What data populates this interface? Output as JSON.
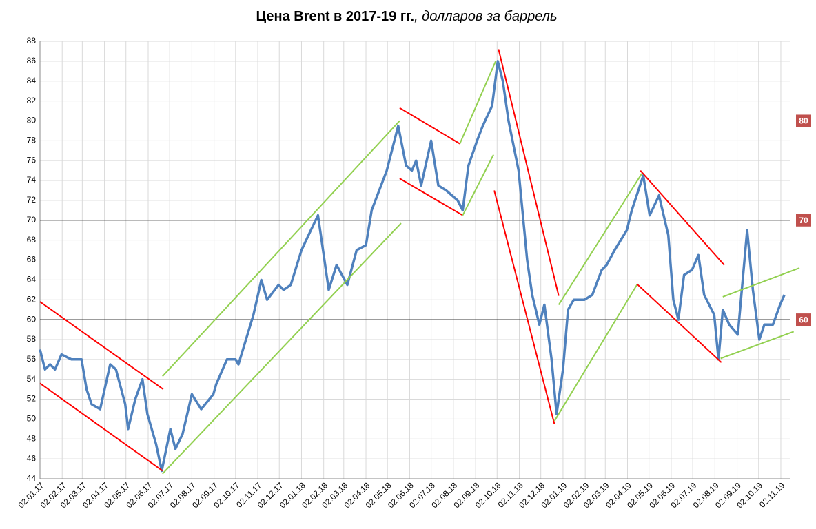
{
  "chart_data": {
    "type": "line",
    "title": "Цена Brent в 2017-19 гг.",
    "subtitle": ", долларов за баррель",
    "xlim": [
      "02.01.17",
      "28.11.19"
    ],
    "xticks": [
      "02.01.17",
      "02.02.17",
      "02.03.17",
      "02.04.17",
      "02.05.17",
      "02.06.17",
      "02.07.17",
      "02.08.17",
      "02.09.17",
      "02.10.17",
      "02.11.17",
      "02.12.17",
      "02.01.18",
      "02.02.18",
      "02.03.18",
      "02.04.18",
      "02.05.18",
      "02.06.18",
      "02.07.18",
      "02.08.18",
      "02.09.18",
      "02.10.18",
      "02.11.18",
      "02.12.18",
      "02.01.19",
      "02.02.19",
      "02.03.19",
      "02.04.19",
      "02.05.19",
      "02.06.19",
      "02.07.19",
      "02.08.19",
      "02.09.19",
      "02.10.19",
      "02.11.19"
    ],
    "ylim": [
      44,
      88
    ],
    "yticks": [
      44,
      46,
      48,
      50,
      52,
      54,
      56,
      58,
      60,
      62,
      64,
      66,
      68,
      70,
      72,
      74,
      76,
      78,
      80,
      82,
      84,
      86,
      88
    ],
    "grid": true,
    "hlines": [
      80,
      70,
      60
    ],
    "hline_color": "#c0504d",
    "x": [
      "02.01.17",
      "09.01.17",
      "16.01.17",
      "23.01.17",
      "01.02.17",
      "15.02.17",
      "01.03.17",
      "08.03.17",
      "15.03.17",
      "27.03.17",
      "10.04.17",
      "18.04.17",
      "01.05.17",
      "05.05.17",
      "15.05.17",
      "25.05.17",
      "01.06.17",
      "13.06.17",
      "21.06.17",
      "03.07.17",
      "10.07.17",
      "20.07.17",
      "02.08.17",
      "15.08.17",
      "01.09.17",
      "05.09.17",
      "20.09.17",
      "02.10.17",
      "06.10.17",
      "27.10.17",
      "07.11.17",
      "15.11.17",
      "01.12.17",
      "08.12.17",
      "18.12.17",
      "02.01.18",
      "15.01.18",
      "25.01.18",
      "09.02.18",
      "20.02.18",
      "07.03.18",
      "20.03.18",
      "02.04.18",
      "10.04.18",
      "01.05.18",
      "17.05.18",
      "28.05.18",
      "05.06.18",
      "11.06.18",
      "18.06.18",
      "02.07.18",
      "12.07.18",
      "23.07.18",
      "08.08.18",
      "15.08.18",
      "23.08.18",
      "04.09.18",
      "12.09.18",
      "25.09.18",
      "03.10.18",
      "10.10.18",
      "18.10.18",
      "01.11.18",
      "13.11.18",
      "20.11.18",
      "30.11.18",
      "07.12.18",
      "17.12.18",
      "24.12.18",
      "02.01.19",
      "09.01.19",
      "17.01.19",
      "01.02.19",
      "12.02.19",
      "25.02.19",
      "04.03.19",
      "15.03.19",
      "01.04.19",
      "08.04.19",
      "24.04.19",
      "03.05.19",
      "16.05.19",
      "29.05.19",
      "05.06.19",
      "12.06.19",
      "20.06.19",
      "01.07.19",
      "10.07.19",
      "18.07.19",
      "01.08.19",
      "07.08.19",
      "13.08.19",
      "22.08.19",
      "03.09.19",
      "16.09.19",
      "24.09.19",
      "03.10.19",
      "10.10.19",
      "22.10.19",
      "01.11.19",
      "07.11.19"
    ],
    "series": [
      {
        "color": "#4f81bd",
        "values": [
          57,
          55,
          55.5,
          55,
          56.5,
          56,
          56,
          53,
          51.5,
          51,
          55.5,
          55,
          51.5,
          49,
          52,
          54,
          50.5,
          47.5,
          44.8,
          49,
          47,
          48.5,
          52.5,
          51,
          52.5,
          53.5,
          56,
          56,
          55.5,
          60.5,
          64,
          62,
          63.5,
          63,
          63.5,
          67,
          69,
          70.5,
          63,
          65.5,
          63.5,
          67,
          67.5,
          71,
          75,
          79.5,
          75.5,
          75,
          76,
          73.5,
          78,
          73.5,
          73,
          72,
          71,
          75.5,
          78,
          79.5,
          81.5,
          86,
          84,
          80,
          75,
          66,
          62.5,
          59.5,
          61.5,
          56,
          50.5,
          55,
          61,
          62,
          62,
          62.5,
          65,
          65.5,
          67,
          69,
          71,
          74.5,
          70.5,
          72.5,
          68.5,
          62,
          60,
          64.5,
          65,
          66.5,
          62.5,
          60.5,
          56,
          61,
          59.5,
          58.5,
          69,
          63,
          58,
          59.5,
          59.5,
          61.5,
          62.5
        ]
      }
    ],
    "trend_lines": [
      {
        "color": "#ff0000",
        "x": [
          "02.01.17",
          "23.06.17"
        ],
        "y": [
          61.8,
          53
        ]
      },
      {
        "color": "#ff0000",
        "x": [
          "02.01.17",
          "22.06.17"
        ],
        "y": [
          53.6,
          44.8
        ]
      },
      {
        "color": "#92d050",
        "x": [
          "22.06.17",
          "19.05.18"
        ],
        "y": [
          54.3,
          80
        ]
      },
      {
        "color": "#92d050",
        "x": [
          "22.06.17",
          "21.05.18"
        ],
        "y": [
          44.5,
          69.7
        ]
      },
      {
        "color": "#ff0000",
        "x": [
          "19.05.18",
          "11.08.18"
        ],
        "y": [
          81.3,
          77.7
        ]
      },
      {
        "color": "#ff0000",
        "x": [
          "19.05.18",
          "15.08.18"
        ],
        "y": [
          74.2,
          70.5
        ]
      },
      {
        "color": "#92d050",
        "x": [
          "11.08.18",
          "30.09.18"
        ],
        "y": [
          77.7,
          86
        ]
      },
      {
        "color": "#92d050",
        "x": [
          "15.08.18",
          "27.09.18"
        ],
        "y": [
          70.5,
          76.6
        ]
      },
      {
        "color": "#ff0000",
        "x": [
          "04.10.18",
          "27.12.18"
        ],
        "y": [
          87.2,
          62.4
        ]
      },
      {
        "color": "#ff0000",
        "x": [
          "28.09.18",
          "21.12.18"
        ],
        "y": [
          73,
          49.5
        ]
      },
      {
        "color": "#92d050",
        "x": [
          "27.12.18",
          "22.04.19"
        ],
        "y": [
          61.5,
          74.7
        ]
      },
      {
        "color": "#92d050",
        "x": [
          "21.12.18",
          "16.04.19"
        ],
        "y": [
          49.8,
          63.6
        ]
      },
      {
        "color": "#ff0000",
        "x": [
          "20.04.19",
          "15.08.19"
        ],
        "y": [
          75,
          65.5
        ]
      },
      {
        "color": "#ff0000",
        "x": [
          "15.04.19",
          "11.08.19"
        ],
        "y": [
          63.6,
          55.7
        ]
      },
      {
        "color": "#92d050",
        "x": [
          "13.08.19",
          "28.11.19"
        ],
        "y": [
          62.3,
          65.2
        ]
      },
      {
        "color": "#92d050",
        "x": [
          "10.08.19",
          "20.11.19"
        ],
        "y": [
          56.1,
          58.8
        ]
      }
    ]
  }
}
